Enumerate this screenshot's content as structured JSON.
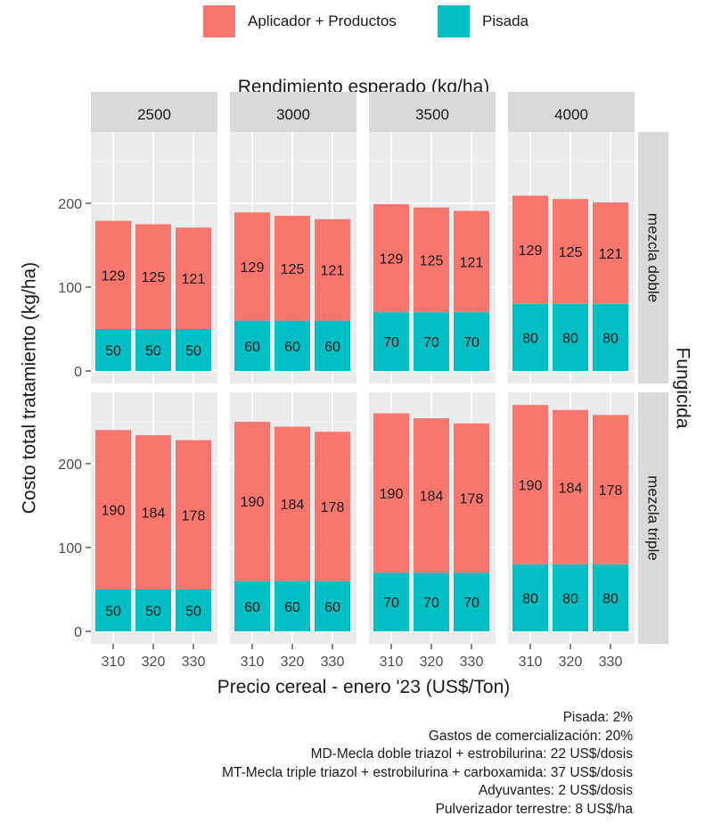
{
  "legend": {
    "items": [
      {
        "label": "Aplicador + Productos",
        "color": "#F8766D"
      },
      {
        "label": "Pisada",
        "color": "#00BFC4"
      }
    ]
  },
  "notes": [
    "Pisada: 2%",
    "Gastos de comercialización: 20%",
    "MD-Mecla doble triazol + estrobilurina: 22 US$/dosis",
    "MT-Mecla triple triazol + estrobilurina + carboxamida: 37 US$/dosis",
    "Adyuvantes: 2 US$/dosis",
    "Pulverizador terrestre: 8 US$/ha"
  ],
  "chart_data": {
    "type": "bar",
    "stacked": true,
    "facet_col_title": "Rendimiento esperado (kg/ha)",
    "facet_row_title": "Fungicida",
    "facet_cols": [
      "2500",
      "3000",
      "3500",
      "4000"
    ],
    "facet_rows": [
      "mezcla doble",
      "mezcla triple"
    ],
    "categories": [
      "310",
      "320",
      "330"
    ],
    "xlabel": "Precio cereal - enero '23 (US$/Ton)",
    "ylabel": "Costo total tratamiento (kg/ha)",
    "ylim": [
      0,
      285
    ],
    "yticks": [
      0,
      100,
      200
    ],
    "grid": true,
    "legend_position": "top",
    "series_colors": {
      "Pisada": "#00BFC4",
      "Aplicador + Productos": "#F8766D"
    },
    "panels": [
      {
        "row": "mezcla doble",
        "col": "2500",
        "pisada": [
          50,
          50,
          50
        ],
        "aplicador": [
          129,
          125,
          121
        ]
      },
      {
        "row": "mezcla doble",
        "col": "3000",
        "pisada": [
          60,
          60,
          60
        ],
        "aplicador": [
          129,
          125,
          121
        ]
      },
      {
        "row": "mezcla doble",
        "col": "3500",
        "pisada": [
          70,
          70,
          70
        ],
        "aplicador": [
          129,
          125,
          121
        ]
      },
      {
        "row": "mezcla doble",
        "col": "4000",
        "pisada": [
          80,
          80,
          80
        ],
        "aplicador": [
          129,
          125,
          121
        ]
      },
      {
        "row": "mezcla triple",
        "col": "2500",
        "pisada": [
          50,
          50,
          50
        ],
        "aplicador": [
          190,
          184,
          178
        ]
      },
      {
        "row": "mezcla triple",
        "col": "3000",
        "pisada": [
          60,
          60,
          60
        ],
        "aplicador": [
          190,
          184,
          178
        ]
      },
      {
        "row": "mezcla triple",
        "col": "3500",
        "pisada": [
          70,
          70,
          70
        ],
        "aplicador": [
          190,
          184,
          178
        ]
      },
      {
        "row": "mezcla triple",
        "col": "4000",
        "pisada": [
          80,
          80,
          80
        ],
        "aplicador": [
          190,
          184,
          178
        ]
      }
    ]
  }
}
